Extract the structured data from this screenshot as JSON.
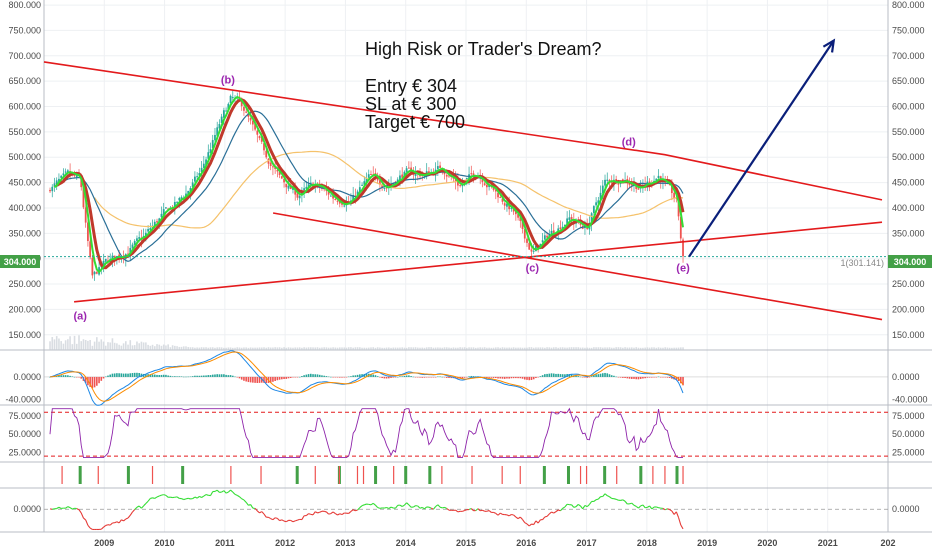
{
  "annotation": {
    "title": "High Risk or Trader's Dream?",
    "entry": "Entry  € 304",
    "sl": "SL at   € 300",
    "target": "Target  € 700"
  },
  "price_badge": "304.000",
  "target_price_label": "1(301.141)",
  "colors": {
    "bull": "#26a69a",
    "bear": "#ef5350",
    "channel": "#e31a1c",
    "arrow": "#0a1f7a",
    "wave_label": "#9c27b0",
    "fast_ma": "#33dd33",
    "slow_ma": "#c0392b",
    "mid_ma": "#2a6f97",
    "long_ma": "#f5c26b",
    "rsi": "#8e24aa",
    "badge": "#43a047"
  },
  "chart_data": {
    "type": "line",
    "x_axis": {
      "ticks": [
        "2009",
        "2010",
        "2011",
        "2012",
        "2013",
        "2014",
        "2015",
        "2016",
        "2017",
        "2018",
        "2019",
        "2020",
        "2021",
        "202"
      ]
    },
    "price_panel": {
      "ylim": [
        120,
        810
      ],
      "yticks": [
        "150.000",
        "200.000",
        "250.000",
        "300.000",
        "350.000",
        "400.000",
        "450.000",
        "500.000",
        "550.000",
        "600.000",
        "650.000",
        "700.000",
        "750.000",
        "800.000"
      ],
      "series": [
        {
          "x": [
            2008.1,
            2008.4,
            2008.6,
            2008.8,
            2009.0,
            2009.3,
            2009.6,
            2010.0,
            2010.3,
            2010.6,
            2010.9,
            2011.1,
            2011.3,
            2011.6,
            2011.9,
            2012.2,
            2012.5,
            2012.8,
            2013.1,
            2013.4,
            2013.7,
            2014.0,
            2014.3,
            2014.6,
            2014.9,
            2015.2,
            2015.5,
            2015.8,
            2016.1,
            2016.4,
            2016.7,
            2017.0,
            2017.3,
            2017.6,
            2017.9,
            2018.2,
            2018.5,
            2018.6
          ],
          "y": [
            440,
            462,
            455,
            260,
            290,
            310,
            335,
            390,
            420,
            470,
            560,
            615,
            600,
            520,
            460,
            425,
            445,
            420,
            415,
            460,
            445,
            470,
            465,
            480,
            445,
            470,
            430,
            390,
            310,
            350,
            380,
            360,
            450,
            460,
            440,
            465,
            410,
            300
          ]
        }
      ],
      "channel_upper": {
        "x": [
          2008.0,
          2018.3,
          2021.9
        ],
        "y": [
          688,
          505,
          416
        ]
      },
      "channel_lower": {
        "x": [
          2011.8,
          2016.1,
          2021.9
        ],
        "y": [
          390,
          300,
          180
        ]
      },
      "support_line": {
        "x": [
          2008.5,
          2021.9
        ],
        "y": [
          215,
          372
        ]
      },
      "entry_level": 304,
      "target_arrow": {
        "from": [
          2018.7,
          304
        ],
        "to": [
          2021.1,
          730
        ]
      },
      "wave_labels": [
        {
          "label": "(a)",
          "x": 2008.6,
          "y": 180
        },
        {
          "label": "(b)",
          "x": 2011.05,
          "y": 645
        },
        {
          "label": "(c)",
          "x": 2016.1,
          "y": 275
        },
        {
          "label": "(d)",
          "x": 2017.7,
          "y": 523
        },
        {
          "label": "(e)",
          "x": 2018.6,
          "y": 275
        }
      ]
    },
    "macd_panel": {
      "ylim": [
        -50,
        48
      ],
      "yticks": [
        "0.0000",
        "-40.0000"
      ]
    },
    "rsi_panel": {
      "ylim": [
        12,
        90
      ],
      "yticks": [
        "75.0000",
        "50.0000",
        "25.0000"
      ],
      "bands": [
        80,
        20
      ]
    },
    "signal_panel": {
      "bull": [
        2008.6,
        2009.4,
        2010.3,
        2012.2,
        2012.9,
        2013.5,
        2014.0,
        2014.4,
        2016.3,
        2016.7,
        2017.3,
        2017.9,
        2018.5
      ],
      "bear": [
        2008.3,
        2008.9,
        2009.8,
        2011.1,
        2011.6,
        2012.5,
        2012.9,
        2013.2,
        2013.3,
        2013.8,
        2014.6,
        2015.1,
        2015.6,
        2015.9,
        2016.9,
        2017.0,
        2017.5,
        2018.1,
        2018.3,
        2018.6
      ]
    },
    "osc_panel": {
      "ylim": [
        -0.45,
        0.42
      ],
      "yticks": [
        "0.0000"
      ]
    }
  }
}
